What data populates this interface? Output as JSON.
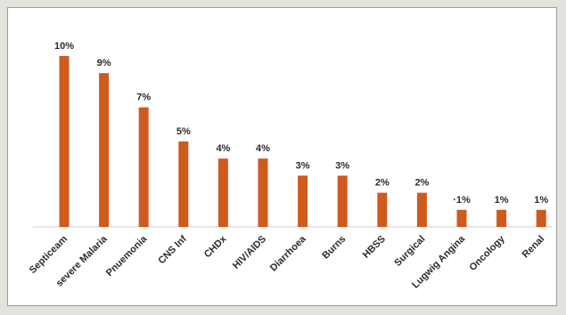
{
  "chart_data": {
    "type": "bar",
    "title": "",
    "xlabel": "",
    "ylabel": "",
    "categories": [
      "Septiceam",
      "severe Malaria",
      "Pnuemonia",
      "CNS Inf",
      "CHDx",
      "HIV/AIDS",
      "Diarrhoea",
      "Burns",
      "HBSS",
      "Surgical",
      "Lugwig Angina",
      "Oncology",
      "Renal"
    ],
    "values": [
      10,
      9,
      7,
      5,
      4,
      4,
      3,
      3,
      2,
      2,
      1,
      1,
      1
    ],
    "data_labels": [
      "10%",
      "9%",
      "7%",
      "5%",
      "4%",
      "4%",
      "3%",
      "3%",
      "2%",
      "2%",
      "·1%",
      "1%",
      "1%"
    ],
    "ylim": [
      0,
      10
    ],
    "grid": false,
    "legend": "none",
    "bar_color": "#cf5a1c"
  }
}
